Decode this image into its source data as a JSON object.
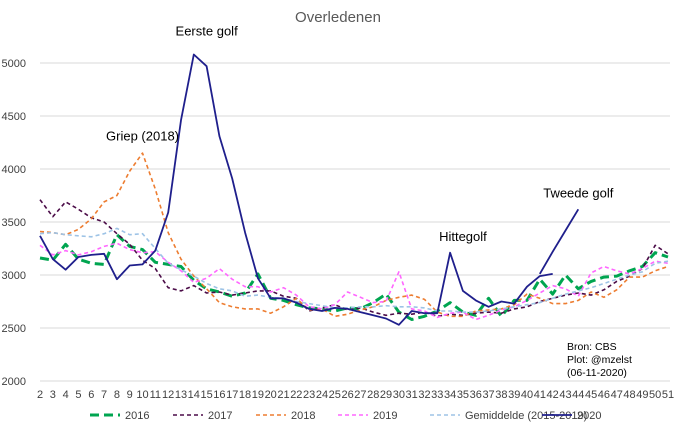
{
  "chart_data": {
    "type": "line",
    "title": "Overledenen",
    "xlabel": "",
    "ylabel": "",
    "ylim": [
      2000,
      5000
    ],
    "yticks": [
      "2000",
      "2500",
      "3000",
      "3500",
      "4000",
      "4500",
      "5000"
    ],
    "categories": [
      "2",
      "3",
      "4",
      "5",
      "6",
      "7",
      "8",
      "9",
      "10",
      "11",
      "12",
      "13",
      "14",
      "15",
      "16",
      "17",
      "18",
      "19",
      "20",
      "21",
      "22",
      "23",
      "24",
      "25",
      "26",
      "27",
      "28",
      "29",
      "30",
      "31",
      "32",
      "33",
      "34",
      "35",
      "36",
      "37",
      "38",
      "39",
      "40",
      "41",
      "42",
      "43",
      "44",
      "45",
      "46",
      "47",
      "48",
      "49",
      "50",
      "51"
    ],
    "grid": "horizontal",
    "legend_position": "bottom",
    "series": [
      {
        "name": "2016",
        "color": "#00a550",
        "style": "long-dash",
        "width": 3,
        "values": [
          3160,
          3140,
          3290,
          3150,
          3110,
          3100,
          3380,
          3270,
          3240,
          3120,
          3100,
          3080,
          2950,
          2870,
          2840,
          2800,
          2830,
          3010,
          2780,
          2760,
          2720,
          2690,
          2680,
          2660,
          2690,
          2680,
          2740,
          2820,
          2650,
          2580,
          2610,
          2660,
          2740,
          2650,
          2620,
          2780,
          2610,
          2760,
          2760,
          2960,
          2820,
          3000,
          2870,
          2940,
          2980,
          2990,
          3040,
          3080,
          3210,
          3170
        ]
      },
      {
        "name": "2017",
        "color": "#4b0c48",
        "style": "dash",
        "width": 1.6,
        "values": [
          3710,
          3550,
          3690,
          3620,
          3540,
          3500,
          3390,
          3290,
          3140,
          3060,
          2880,
          2850,
          2900,
          2830,
          2840,
          2810,
          2830,
          2850,
          2850,
          2800,
          2780,
          2660,
          2690,
          2720,
          2670,
          2690,
          2650,
          2620,
          2640,
          2630,
          2650,
          2610,
          2630,
          2620,
          2640,
          2650,
          2640,
          2680,
          2700,
          2750,
          2780,
          2810,
          2830,
          2810,
          2860,
          2940,
          2990,
          3060,
          3280,
          3200
        ]
      },
      {
        "name": "2018",
        "color": "#ed7d31",
        "style": "dash",
        "width": 1.6,
        "values": [
          3410,
          3400,
          3380,
          3430,
          3530,
          3690,
          3750,
          3980,
          4150,
          3810,
          3400,
          3150,
          2990,
          2870,
          2740,
          2700,
          2680,
          2680,
          2640,
          2700,
          2780,
          2670,
          2680,
          2610,
          2630,
          2670,
          2700,
          2760,
          2790,
          2810,
          2770,
          2650,
          2610,
          2610,
          2660,
          2670,
          2680,
          2720,
          2820,
          2780,
          2730,
          2730,
          2760,
          2840,
          2790,
          2860,
          2980,
          2980,
          3040,
          3080
        ]
      },
      {
        "name": "2019",
        "color": "#ff66ff",
        "style": "dash",
        "width": 1.6,
        "values": [
          3280,
          3190,
          3230,
          3190,
          3220,
          3270,
          3300,
          3240,
          3210,
          3220,
          3120,
          3040,
          2930,
          2970,
          3060,
          2960,
          2890,
          2890,
          2840,
          2880,
          2810,
          2700,
          2680,
          2720,
          2840,
          2790,
          2740,
          2750,
          3030,
          2680,
          2660,
          2600,
          2640,
          2650,
          2580,
          2620,
          2670,
          2700,
          2760,
          2830,
          2900,
          2870,
          2800,
          3020,
          3080,
          3040,
          3010,
          3060,
          3130,
          3110
        ]
      },
      {
        "name": "Gemiddelde (2015-2019)",
        "color": "#9dc3e6",
        "style": "dash",
        "width": 1.6,
        "values": [
          3390,
          3400,
          3380,
          3370,
          3360,
          3390,
          3440,
          3380,
          3390,
          3250,
          3110,
          3050,
          2990,
          2920,
          2870,
          2850,
          2800,
          2810,
          2790,
          2780,
          2750,
          2730,
          2710,
          2690,
          2690,
          2700,
          2700,
          2710,
          2700,
          2700,
          2690,
          2660,
          2660,
          2650,
          2650,
          2660,
          2680,
          2700,
          2720,
          2740,
          2780,
          2820,
          2850,
          2880,
          2920,
          2960,
          3000,
          3030,
          3110,
          3130
        ]
      },
      {
        "name": "2020",
        "color": "#1f1f8c",
        "style": "solid",
        "width": 1.8,
        "values": [
          3370,
          3150,
          3050,
          3170,
          3190,
          3200,
          2960,
          3090,
          3100,
          3230,
          3590,
          4460,
          5080,
          4970,
          4310,
          3910,
          3400,
          2970,
          2780,
          2780,
          2740,
          2680,
          2660,
          2690,
          2680,
          2650,
          2620,
          2590,
          2530,
          2660,
          2640,
          2640,
          3210,
          2850,
          2760,
          2700,
          2750,
          2730,
          2890,
          2990,
          3010,
          null,
          null,
          null,
          null,
          null,
          null,
          null,
          null,
          null
        ]
      },
      {
        "name": "",
        "color": "#1f1f8c",
        "style": "solid",
        "width": 1.8,
        "values": [
          null,
          null,
          null,
          null,
          null,
          null,
          null,
          null,
          null,
          null,
          null,
          null,
          null,
          null,
          null,
          null,
          null,
          null,
          null,
          null,
          null,
          null,
          null,
          null,
          null,
          null,
          null,
          null,
          null,
          null,
          null,
          null,
          null,
          null,
          null,
          null,
          null,
          null,
          null,
          3010,
          3220,
          3420,
          3620,
          null,
          null,
          null,
          null,
          null,
          null,
          null
        ]
      }
    ],
    "annotations": [
      {
        "text": "Eerste golf",
        "x": "15",
        "y": 5260
      },
      {
        "text": "Griep (2018)",
        "x": "10",
        "y": 4270
      },
      {
        "text": "Hittegolf",
        "x": "35",
        "y": 3320
      },
      {
        "text": "Tweede golf",
        "x": "44",
        "y": 3730
      }
    ],
    "source_note": [
      "Bron: CBS",
      "Plot: @mzelst",
      "(06-11-2020)"
    ]
  }
}
